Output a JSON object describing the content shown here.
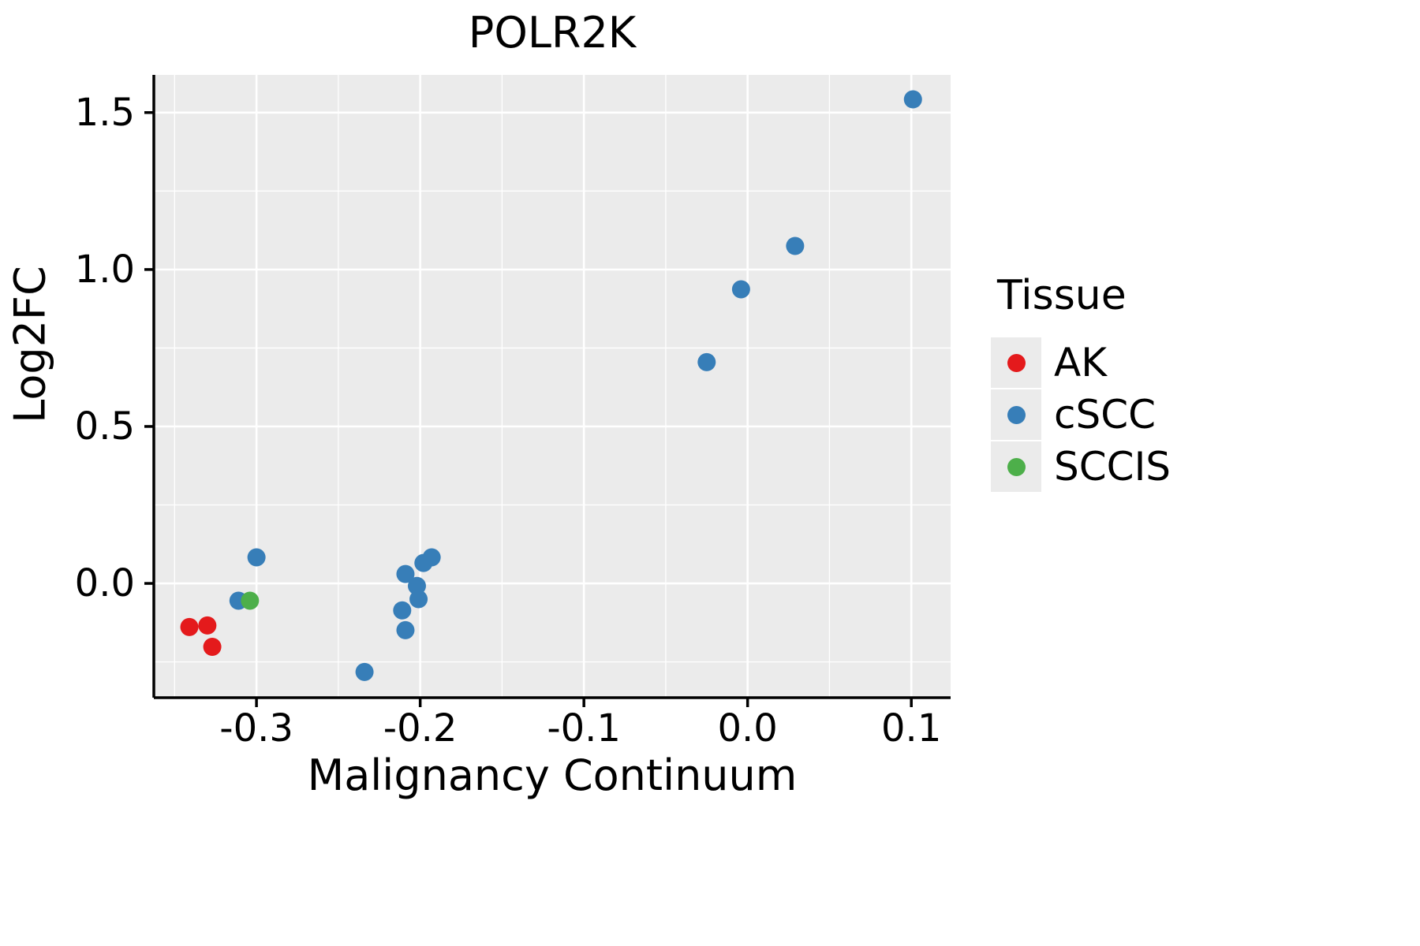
{
  "chart_data": {
    "type": "scatter",
    "title": "POLR2K",
    "xlabel": "Malignancy Continuum",
    "ylabel": "Log2FC",
    "xlim": [
      -0.3627,
      0.124
    ],
    "ylim": [
      -0.364,
      1.62
    ],
    "x_ticks": [
      -0.3,
      -0.2,
      -0.1,
      0.0,
      0.1
    ],
    "x_tick_labels": [
      "-0.3",
      "-0.2",
      "-0.1",
      "0.0",
      "0.1"
    ],
    "x_minor_ticks": [
      -0.35,
      -0.25,
      -0.15,
      -0.05,
      0.05
    ],
    "y_ticks": [
      0.0,
      0.5,
      1.0,
      1.5
    ],
    "y_tick_labels": [
      "0.0",
      "0.5",
      "1.0",
      "1.5"
    ],
    "y_minor_ticks": [
      -0.25,
      0.25,
      0.75,
      1.25
    ],
    "grid": true,
    "legend_position": "right",
    "legend_title": "Tissue",
    "panel_background": "#EBEBEB",
    "grid_color": "#FFFFFF",
    "axis_color": "#000000",
    "series": [
      {
        "name": "AK",
        "color": "#E41A1C",
        "points": [
          [
            -0.341,
            -0.139
          ],
          [
            -0.33,
            -0.134
          ],
          [
            -0.327,
            -0.202
          ]
        ]
      },
      {
        "name": "cSCC",
        "color": "#377EB8",
        "points": [
          [
            0.101,
            1.542
          ],
          [
            0.029,
            1.075
          ],
          [
            -0.004,
            0.937
          ],
          [
            -0.025,
            0.705
          ],
          [
            -0.3,
            0.083
          ],
          [
            -0.311,
            -0.055
          ],
          [
            -0.193,
            0.083
          ],
          [
            -0.198,
            0.065
          ],
          [
            -0.209,
            0.03
          ],
          [
            -0.202,
            -0.008
          ],
          [
            -0.201,
            -0.05
          ],
          [
            -0.211,
            -0.086
          ],
          [
            -0.209,
            -0.149
          ],
          [
            -0.234,
            -0.282
          ]
        ]
      },
      {
        "name": "SCCIS",
        "color": "#4DAF4A",
        "points": [
          [
            -0.304,
            -0.055
          ]
        ]
      }
    ]
  }
}
